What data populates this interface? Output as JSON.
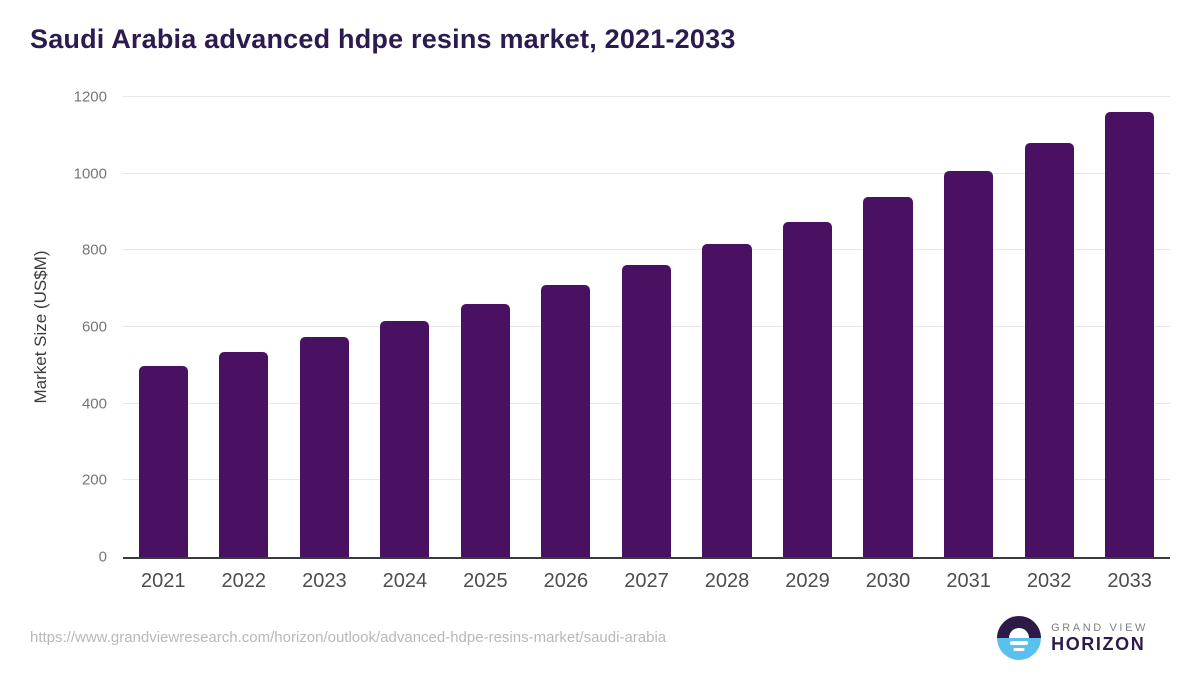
{
  "chart_data": {
    "type": "bar",
    "title": "Saudi Arabia advanced hdpe resins market, 2021-2033",
    "xlabel": "",
    "ylabel": "Market Size (US$M)",
    "categories": [
      "2021",
      "2022",
      "2023",
      "2024",
      "2025",
      "2026",
      "2027",
      "2028",
      "2029",
      "2030",
      "2031",
      "2032",
      "2033"
    ],
    "values": [
      497,
      535,
      574,
      616,
      661,
      710,
      761,
      816,
      874,
      938,
      1007,
      1080,
      1161
    ],
    "ylim": [
      0,
      1200
    ],
    "yticks": [
      0,
      200,
      400,
      600,
      800,
      1000,
      1200
    ],
    "grid": true,
    "legend_position": "none"
  },
  "footer": {
    "source_url": "https://www.grandviewresearch.com/horizon/outlook/advanced-hdpe-resins-market/saudi-arabia",
    "logo": {
      "top_text": "GRAND VIEW",
      "bottom_text": "HORIZON"
    }
  },
  "colors": {
    "title": "#2d1a4e",
    "bar": "#4a1162",
    "grid": "#e7e7e7",
    "axis": "#3a3a3a",
    "y_tick": "#777777",
    "x_tick": "#4d4d4d",
    "url": "#b8b8b8",
    "logo_purple": "#2d1a47",
    "logo_blue": "#5ac0ed",
    "logo_gray": "#808080"
  }
}
